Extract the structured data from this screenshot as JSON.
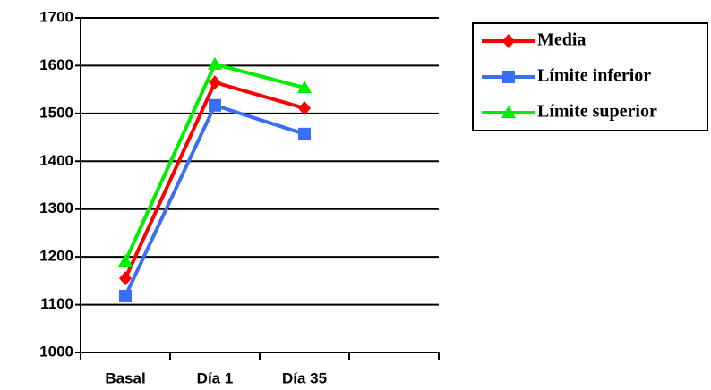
{
  "chart_data": {
    "type": "line",
    "categories": [
      "Basal",
      "Día 1",
      "Día 35",
      null
    ],
    "series": [
      {
        "name": "Media",
        "color": "#ff0000",
        "marker": "diamond",
        "values": [
          1155,
          1565,
          1511,
          null
        ]
      },
      {
        "name": "Límite inferior",
        "color": "#3a6ff5",
        "marker": "square",
        "values": [
          1118,
          1517,
          1457,
          null
        ]
      },
      {
        "name": "Límite superior",
        "color": "#00ee00",
        "marker": "triangle",
        "values": [
          1191,
          1603,
          1554,
          null
        ]
      }
    ],
    "ylim": [
      1000,
      1700
    ],
    "yticks": [
      1000,
      1100,
      1200,
      1300,
      1400,
      1500,
      1600,
      1700
    ],
    "grid": true,
    "legend": "right"
  }
}
